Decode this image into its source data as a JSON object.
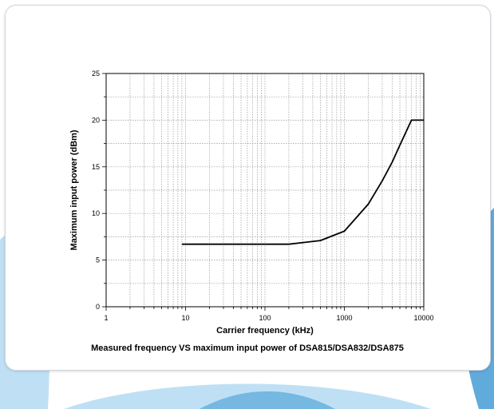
{
  "colors": {
    "accent_blue": "#2b8fd0",
    "accent_light": "#bfe0f4",
    "line": "#000000"
  },
  "chart_data": {
    "type": "line",
    "x_scale": "log",
    "xlabel": "Carrier frequency (kHz)",
    "ylabel": "Maximum input power (dBm)",
    "xlim": [
      1,
      10000
    ],
    "ylim": [
      0,
      25
    ],
    "grid": true,
    "x_ticks": [
      "1",
      "10",
      "100",
      "1000",
      "10000"
    ],
    "y_ticks": [
      "0",
      "5",
      "10",
      "15",
      "20",
      "25"
    ],
    "x": [
      9,
      20,
      50,
      100,
      200,
      500,
      1000,
      2000,
      3000,
      4000,
      5000,
      7000,
      10000
    ],
    "y": [
      6.7,
      6.7,
      6.7,
      6.7,
      6.7,
      7.1,
      8.1,
      11.0,
      13.5,
      15.5,
      17.3,
      20.0,
      20.0
    ],
    "caption": "Measured frequency VS maximum input power of DSA815/DSA832/DSA875"
  }
}
